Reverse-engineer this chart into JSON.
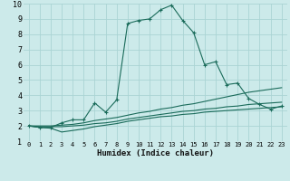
{
  "xlabel": "Humidex (Indice chaleur)",
  "bg_color": "#cceaea",
  "grid_color": "#aad4d4",
  "line_color": "#1a6b5a",
  "xlim": [
    -0.5,
    23.5
  ],
  "ylim": [
    1,
    10
  ],
  "xticks": [
    0,
    1,
    2,
    3,
    4,
    5,
    6,
    7,
    8,
    9,
    10,
    11,
    12,
    13,
    14,
    15,
    16,
    17,
    18,
    19,
    20,
    21,
    22,
    23
  ],
  "yticks": [
    1,
    2,
    3,
    4,
    5,
    6,
    7,
    8,
    9,
    10
  ],
  "series": [
    {
      "x": [
        0,
        1,
        2,
        3,
        4,
        5,
        6,
        7,
        8,
        9,
        10,
        11,
        12,
        13,
        14,
        15,
        16,
        17,
        18,
        19,
        20,
        21,
        22,
        23
      ],
      "y": [
        2.0,
        1.9,
        1.9,
        2.2,
        2.4,
        2.4,
        3.5,
        2.9,
        3.7,
        8.7,
        8.9,
        9.0,
        9.6,
        9.9,
        8.9,
        8.1,
        6.0,
        6.2,
        4.7,
        4.8,
        3.8,
        3.4,
        3.1,
        3.3
      ],
      "marker": "+"
    },
    {
      "x": [
        0,
        1,
        2,
        3,
        4,
        5,
        6,
        7,
        8,
        9,
        10,
        11,
        12,
        13,
        14,
        15,
        16,
        17,
        18,
        19,
        20,
        21,
        22,
        23
      ],
      "y": [
        2.0,
        2.0,
        2.0,
        2.05,
        2.1,
        2.2,
        2.35,
        2.45,
        2.55,
        2.7,
        2.85,
        2.95,
        3.1,
        3.2,
        3.35,
        3.45,
        3.6,
        3.75,
        3.9,
        4.05,
        4.2,
        4.3,
        4.4,
        4.5
      ],
      "marker": null
    },
    {
      "x": [
        0,
        1,
        2,
        3,
        4,
        5,
        6,
        7,
        8,
        9,
        10,
        11,
        12,
        13,
        14,
        15,
        16,
        17,
        18,
        19,
        20,
        21,
        22,
        23
      ],
      "y": [
        2.0,
        1.95,
        1.95,
        1.95,
        2.0,
        2.05,
        2.15,
        2.2,
        2.3,
        2.45,
        2.55,
        2.65,
        2.75,
        2.85,
        2.95,
        3.0,
        3.1,
        3.15,
        3.25,
        3.3,
        3.4,
        3.45,
        3.5,
        3.55
      ],
      "marker": null
    },
    {
      "x": [
        0,
        1,
        2,
        3,
        4,
        5,
        6,
        7,
        8,
        9,
        10,
        11,
        12,
        13,
        14,
        15,
        16,
        17,
        18,
        19,
        20,
        21,
        22,
        23
      ],
      "y": [
        2.0,
        1.9,
        1.85,
        1.6,
        1.7,
        1.8,
        1.95,
        2.05,
        2.15,
        2.3,
        2.4,
        2.5,
        2.6,
        2.65,
        2.75,
        2.8,
        2.9,
        2.95,
        3.0,
        3.05,
        3.1,
        3.15,
        3.2,
        3.25
      ],
      "marker": null
    }
  ]
}
